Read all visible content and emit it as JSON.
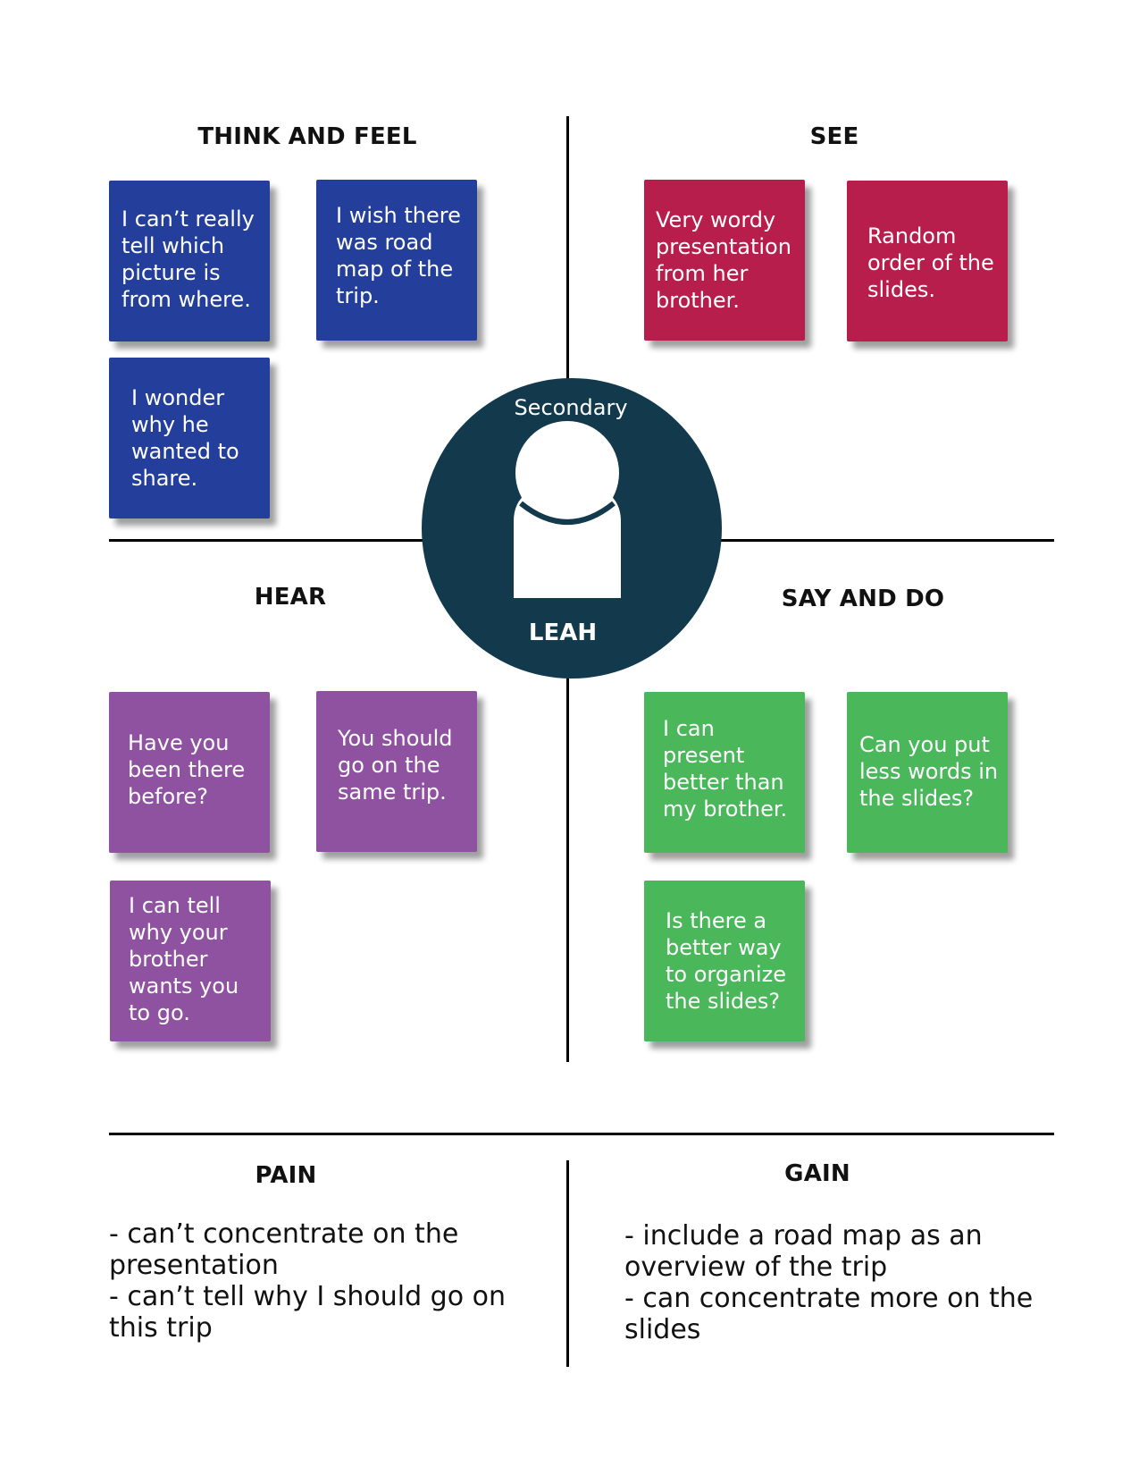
{
  "colors": {
    "think_feel": "#233e9b",
    "see": "#b81e4b",
    "hear": "#8f52a1",
    "say_do": "#49b75a",
    "persona": "#123a4c"
  },
  "persona": {
    "role": "Secondary",
    "name": "LEAH",
    "icon": "person-silhouette-icon"
  },
  "quadrants": {
    "think_feel": {
      "title": "THINK AND FEEL",
      "notes": [
        "I can’t really\ntell which\npicture is\nfrom where.",
        "I wish there\nwas road\nmap of the\ntrip.",
        "I wonder\nwhy he\nwanted to\nshare."
      ]
    },
    "see": {
      "title": "SEE",
      "notes": [
        "Very wordy\npresentation\nfrom her\nbrother.",
        "Random\norder of the\nslides."
      ]
    },
    "hear": {
      "title": "HEAR",
      "notes": [
        "Have you\nbeen there\nbefore?",
        "You should\ngo on the\nsame trip.",
        "I can tell\nwhy your\nbrother\nwants you\nto go."
      ]
    },
    "say_do": {
      "title": "SAY AND DO",
      "notes": [
        "I can\npresent\nbetter than\nmy brother.",
        "Can you put\nless words in\nthe slides?",
        "Is there a\nbetter way\nto organize\nthe slides?"
      ]
    }
  },
  "pain": {
    "title": "PAIN",
    "text": "- can’t concentrate on the\npresentation\n- can’t tell why I should go on\nthis trip"
  },
  "gain": {
    "title": "GAIN",
    "text": "- include a road map as an\noverview of the trip\n- can concentrate more on the\nslides"
  }
}
